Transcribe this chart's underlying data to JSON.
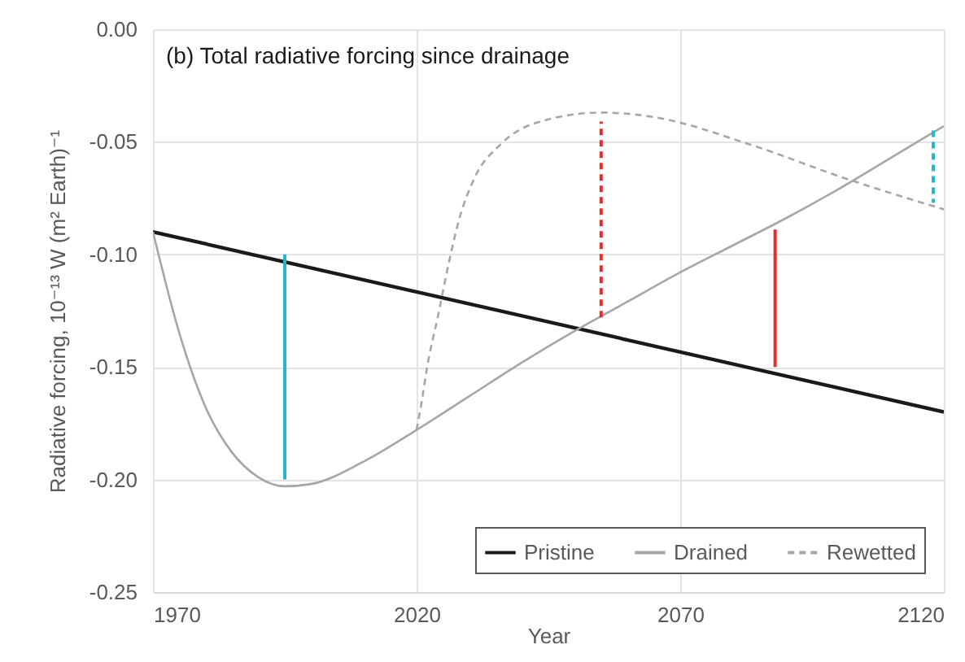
{
  "chart_data": {
    "type": "line",
    "title": "(b) Total radiative forcing since drainage",
    "xlabel": "Year",
    "ylabel": "Radiative forcing, 10⁻¹³ W (m² Earth)⁻¹",
    "xlim": [
      1970,
      2120
    ],
    "xticks": [
      1970,
      2020,
      2070,
      2120
    ],
    "ylim": [
      -0.25,
      0
    ],
    "yticks": [
      {
        "value": 0,
        "label": "0.00"
      },
      {
        "value": -0.05,
        "label": "-0.05"
      },
      {
        "value": -0.1,
        "label": "-0.10"
      },
      {
        "value": -0.15,
        "label": "-0.15"
      },
      {
        "value": -0.2,
        "label": "-0.20"
      },
      {
        "value": -0.25,
        "label": "-0.25"
      }
    ],
    "grid": true,
    "legend": "bottom right",
    "marker": "none",
    "series": [
      {
        "name": "Pristine",
        "color": "#1a1a1a",
        "line_style": "solid",
        "x": [
          1970,
          2120
        ],
        "values": [
          -0.09,
          -0.17
        ]
      },
      {
        "name": "Drained",
        "color": "#a6a6a6",
        "line_style": "solid",
        "x": [
          1970,
          1975,
          1980,
          1985,
          1990,
          1995,
          2000,
          2010,
          2020,
          2030,
          2040,
          2050,
          2060,
          2070,
          2080,
          2090,
          2100,
          2110,
          2120
        ],
        "values": [
          -0.09,
          -0.135,
          -0.168,
          -0.188,
          -0.199,
          -0.203,
          -0.202,
          -0.192,
          -0.178,
          -0.163,
          -0.148,
          -0.134,
          -0.121,
          -0.108,
          -0.096,
          -0.084,
          -0.071,
          -0.057,
          -0.043
        ]
      },
      {
        "name": "Rewetted",
        "color": "#a6a6a6",
        "line_style": "dashed",
        "x": [
          2020,
          2021,
          2022,
          2024,
          2026,
          2028,
          2031,
          2036,
          2045,
          2055,
          2065,
          2083,
          2101,
          2120
        ],
        "values": [
          -0.178,
          -0.165,
          -0.15,
          -0.128,
          -0.105,
          -0.085,
          -0.066,
          -0.051,
          -0.04,
          -0.037,
          -0.039,
          -0.051,
          -0.066,
          -0.08
        ]
      },
      {
        "color": "#27b6c9",
        "line_style": "solid",
        "x": [
          1995,
          1995
        ],
        "values": [
          -0.1,
          -0.2
        ]
      },
      {
        "color": "#e0302e",
        "line_style": "dashed",
        "x": [
          2055,
          2055
        ],
        "values": [
          -0.128,
          -0.041
        ]
      },
      {
        "color": "#e0302e",
        "line_style": "solid",
        "x": [
          2088,
          2088
        ],
        "values": [
          -0.15,
          -0.089
        ]
      },
      {
        "color": "#27b6c9",
        "line_style": "dashed",
        "x": [
          2118,
          2118
        ],
        "values": [
          -0.045,
          -0.077
        ]
      }
    ]
  }
}
